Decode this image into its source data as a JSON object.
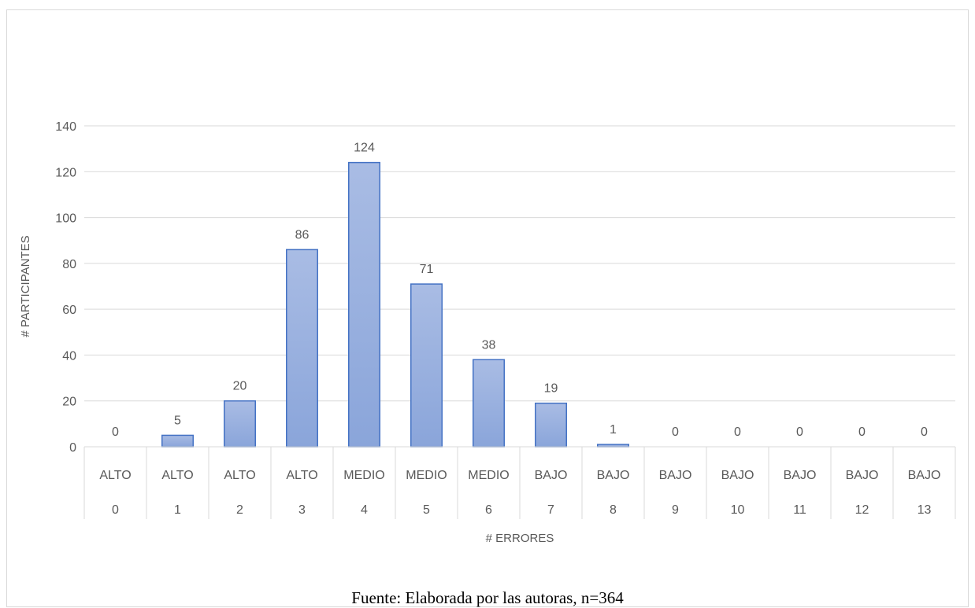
{
  "chart_data": {
    "type": "bar",
    "categories": [
      "0",
      "1",
      "2",
      "3",
      "4",
      "5",
      "6",
      "7",
      "8",
      "9",
      "10",
      "11",
      "12",
      "13"
    ],
    "levels": [
      "ALTO",
      "ALTO",
      "ALTO",
      "ALTO",
      "MEDIO",
      "MEDIO",
      "MEDIO",
      "BAJO",
      "BAJO",
      "BAJO",
      "BAJO",
      "BAJO",
      "BAJO",
      "BAJO"
    ],
    "values": [
      0,
      5,
      20,
      86,
      124,
      71,
      38,
      19,
      1,
      0,
      0,
      0,
      0,
      0
    ],
    "xlabel": "# ERRORES",
    "ylabel": "# PARTICIPANTES",
    "ylim": [
      0,
      140
    ],
    "yticks": [
      0,
      20,
      40,
      60,
      80,
      100,
      120,
      140
    ],
    "grid": true,
    "bar_color": "#8ea9db",
    "bar_edge_color": "#4472c4"
  },
  "source_note": "Fuente: Elaborada por las autoras, n=364"
}
